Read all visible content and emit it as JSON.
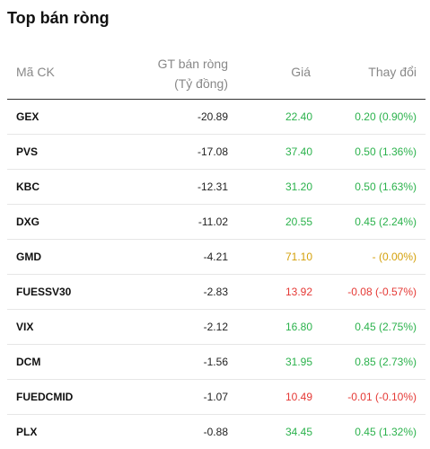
{
  "title": "Top bán ròng",
  "headers": {
    "code": "Mã CK",
    "value_line1": "GT bán ròng",
    "value_line2": "(Tỷ đồng)",
    "price": "Giá",
    "change": "Thay đổi"
  },
  "colors": {
    "up": "#2bb24c",
    "down": "#e53935",
    "reference": "#d4a00a"
  },
  "rows": [
    {
      "code": "GEX",
      "value": "-20.89",
      "price": "22.40",
      "change": "0.20 (0.90%)",
      "trend": "up"
    },
    {
      "code": "PVS",
      "value": "-17.08",
      "price": "37.40",
      "change": "0.50 (1.36%)",
      "trend": "up"
    },
    {
      "code": "KBC",
      "value": "-12.31",
      "price": "31.20",
      "change": "0.50 (1.63%)",
      "trend": "up"
    },
    {
      "code": "DXG",
      "value": "-11.02",
      "price": "20.55",
      "change": "0.45 (2.24%)",
      "trend": "up"
    },
    {
      "code": "GMD",
      "value": "-4.21",
      "price": "71.10",
      "change": "- (0.00%)",
      "trend": "ref"
    },
    {
      "code": "FUESSV30",
      "value": "-2.83",
      "price": "13.92",
      "change": "-0.08 (-0.57%)",
      "trend": "down"
    },
    {
      "code": "VIX",
      "value": "-2.12",
      "price": "16.80",
      "change": "0.45 (2.75%)",
      "trend": "up"
    },
    {
      "code": "DCM",
      "value": "-1.56",
      "price": "31.95",
      "change": "0.85 (2.73%)",
      "trend": "up"
    },
    {
      "code": "FUEDCMID",
      "value": "-1.07",
      "price": "10.49",
      "change": "-0.01 (-0.10%)",
      "trend": "down"
    },
    {
      "code": "PLX",
      "value": "-0.88",
      "price": "34.45",
      "change": "0.45 (1.32%)",
      "trend": "up"
    }
  ]
}
